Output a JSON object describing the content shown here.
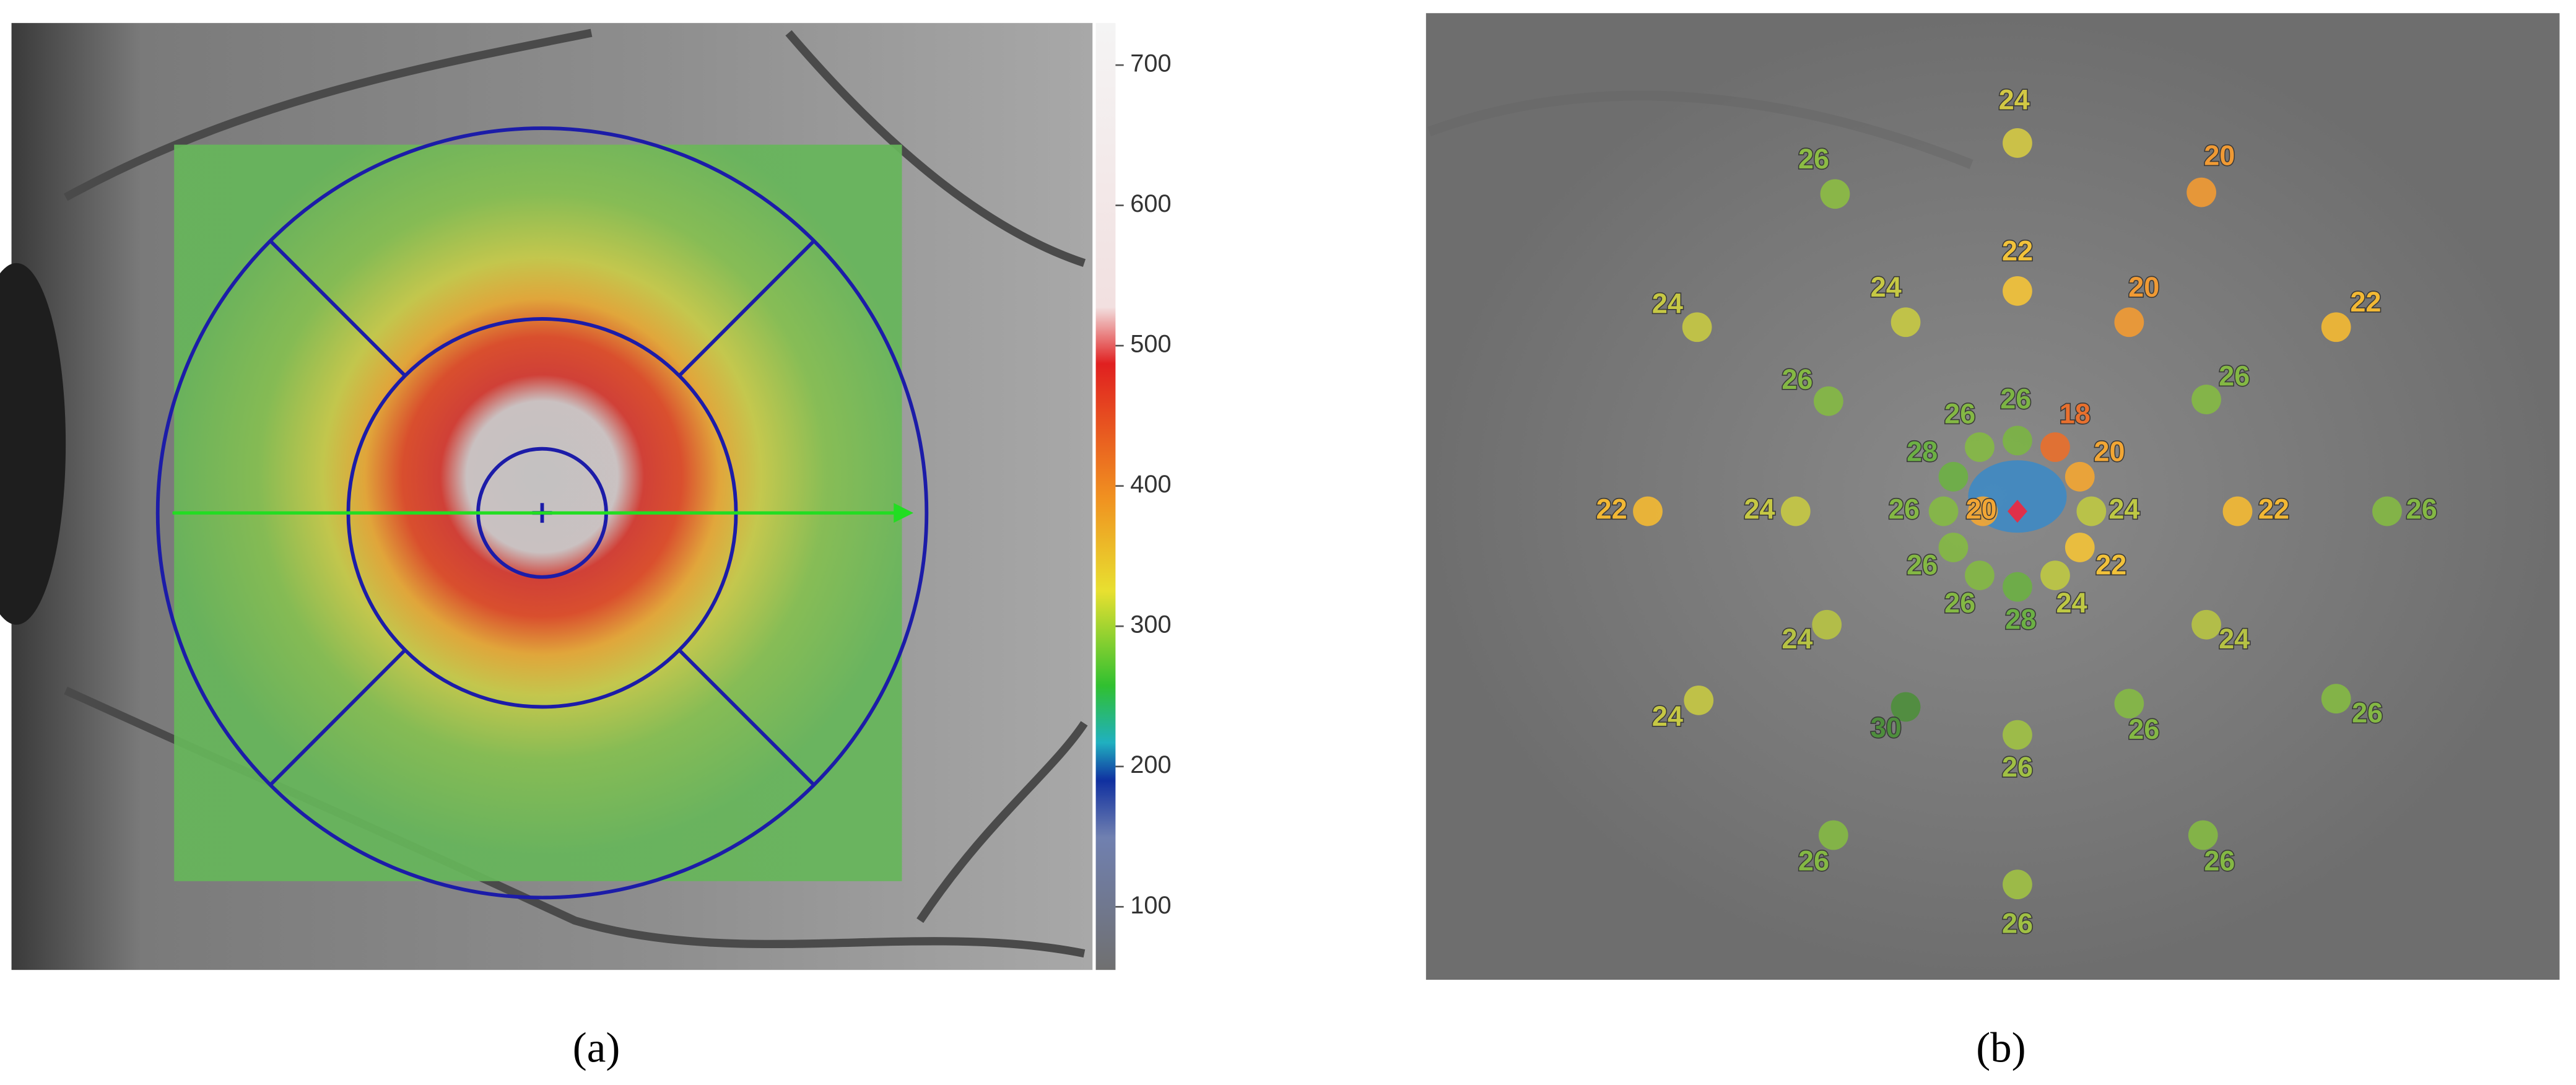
{
  "panel_a": {
    "label": "(a)",
    "colorbar": {
      "lim": [
        55,
        730
      ],
      "ticks": [
        100,
        200,
        300,
        400,
        500,
        600,
        700
      ]
    }
  },
  "panel_b": {
    "label": "(b)",
    "points": [
      {
        "value": 24,
        "color": "#d2c844"
      },
      {
        "value": 26,
        "color": "#8cbc44"
      },
      {
        "value": 20,
        "color": "#f09a34"
      },
      {
        "value": 24,
        "color": "#c6c844"
      },
      {
        "value": 24,
        "color": "#c6c844"
      },
      {
        "value": 22,
        "color": "#f2c23a"
      },
      {
        "value": 20,
        "color": "#f09a34"
      },
      {
        "value": 22,
        "color": "#f2b834"
      },
      {
        "value": 26,
        "color": "#84b844"
      },
      {
        "value": 26,
        "color": "#84b844"
      },
      {
        "value": 26,
        "color": "#84b844"
      },
      {
        "value": 26,
        "color": "#7cb444"
      },
      {
        "value": 18,
        "color": "#e8702e"
      },
      {
        "value": 28,
        "color": "#6cb044"
      },
      {
        "value": 20,
        "color": "#f2a634"
      },
      {
        "value": 26,
        "color": "#84b844"
      },
      {
        "value": 20,
        "color": "#f2a634"
      },
      {
        "value": 24,
        "color": "#bec844"
      },
      {
        "value": 26,
        "color": "#84b844"
      },
      {
        "value": 22,
        "color": "#f2c23a"
      },
      {
        "value": 26,
        "color": "#84b844"
      },
      {
        "value": 28,
        "color": "#6cb044"
      },
      {
        "value": 24,
        "color": "#bec844"
      },
      {
        "value": 22,
        "color": "#f2b834"
      },
      {
        "value": 24,
        "color": "#c6c844"
      },
      {
        "value": 22,
        "color": "#f2b834"
      },
      {
        "value": 26,
        "color": "#84b844"
      },
      {
        "value": 24,
        "color": "#b6c244"
      },
      {
        "value": 24,
        "color": "#b6c244"
      },
      {
        "value": 24,
        "color": "#c6c844"
      },
      {
        "value": 30,
        "color": "#4e8e3c"
      },
      {
        "value": 26,
        "color": "#a0c044"
      },
      {
        "value": 26,
        "color": "#84b844"
      },
      {
        "value": 26,
        "color": "#84b844"
      },
      {
        "value": 26,
        "color": "#84b844"
      },
      {
        "value": 26,
        "color": "#84b844"
      },
      {
        "value": 26,
        "color": "#a0c044"
      }
    ]
  }
}
